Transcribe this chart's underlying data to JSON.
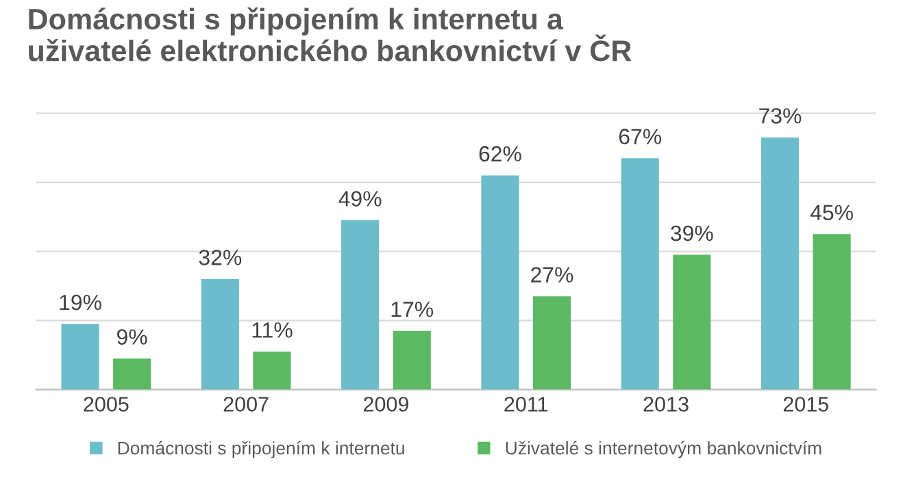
{
  "chart_data": {
    "type": "bar",
    "title": "Domácnosti s připojením k internetu a\nuživatelé elektronického bankovnictví v ČR",
    "categories": [
      "2005",
      "2007",
      "2009",
      "2011",
      "2013",
      "2015"
    ],
    "series": [
      {
        "name": "Domácnosti s připojením k internetu",
        "color": "#6cbccb",
        "values": [
          19,
          32,
          49,
          62,
          67,
          73
        ],
        "value_labels": [
          "19%",
          "32%",
          "49%",
          "62%",
          "67%",
          "73%"
        ]
      },
      {
        "name": "Uživatelé s internetovým bankovnictvím",
        "color": "#5cb963",
        "values": [
          9,
          11,
          17,
          27,
          39,
          45
        ],
        "value_labels": [
          "9%",
          "11%",
          "17%",
          "27%",
          "39%",
          "45%"
        ]
      }
    ],
    "tick_labels": "x",
    "grid": "y",
    "legend": "bottom"
  }
}
